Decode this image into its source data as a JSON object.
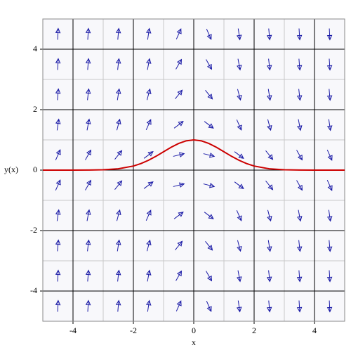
{
  "chart_data": {
    "type": "direction-field",
    "xlabel": "x",
    "ylabel": "y(x)",
    "xlim": [
      -5,
      5
    ],
    "ylim": [
      -5,
      5
    ],
    "xticks": [
      -4,
      -2,
      0,
      2,
      4
    ],
    "yticks": [
      -4,
      -2,
      0,
      2,
      4
    ],
    "minor_grid": [
      -3,
      -1,
      1,
      3
    ],
    "grid": true,
    "arrow_color": "#1a1aa6",
    "field": {
      "x": [
        -4.5,
        -3.5,
        -2.5,
        -1.5,
        -0.5,
        0.5,
        1.5,
        2.5,
        3.5,
        4.5
      ],
      "y": [
        4.5,
        3.5,
        2.5,
        1.5,
        0.5,
        -0.5,
        -1.5,
        -2.5,
        -3.5,
        -4.5
      ],
      "slopes": [
        [
          20.25,
          15.75,
          11.25,
          6.75,
          2.25,
          -2.25,
          -6.75,
          -11.25,
          -15.75,
          -20.25
        ],
        [
          15.75,
          12.25,
          8.75,
          5.25,
          1.75,
          -1.75,
          -5.25,
          -8.75,
          -12.25,
          -15.75
        ],
        [
          11.25,
          8.75,
          6.25,
          3.75,
          1.25,
          -1.25,
          -3.75,
          -6.25,
          -8.75,
          -11.25
        ],
        [
          6.75,
          5.25,
          3.75,
          2.25,
          0.75,
          -0.75,
          -2.25,
          -3.75,
          -5.25,
          -6.75
        ],
        [
          2.25,
          1.75,
          1.25,
          0.75,
          0.25,
          -0.25,
          -0.75,
          -1.25,
          -1.75,
          -2.25
        ],
        [
          2.25,
          1.75,
          1.25,
          0.75,
          0.25,
          -0.25,
          -0.75,
          -1.25,
          -1.75,
          -2.25
        ],
        [
          6.75,
          5.25,
          3.75,
          2.25,
          0.75,
          -0.75,
          -2.25,
          -3.75,
          -5.25,
          -6.75
        ],
        [
          11.25,
          8.75,
          6.25,
          3.75,
          1.25,
          -1.25,
          -3.75,
          -6.25,
          -8.75,
          -11.25
        ],
        [
          15.75,
          12.25,
          8.75,
          5.25,
          1.75,
          -1.75,
          -5.25,
          -8.75,
          -12.25,
          -15.75
        ],
        [
          20.25,
          15.75,
          11.25,
          6.75,
          2.25,
          -2.25,
          -6.75,
          -11.25,
          -15.75,
          -20.25
        ]
      ]
    },
    "curve": {
      "color": "#cc0000",
      "x": [
        -5,
        -4.5,
        -4,
        -3.5,
        -3,
        -2.5,
        -2,
        -1.75,
        -1.5,
        -1.25,
        -1,
        -0.75,
        -0.5,
        -0.25,
        0,
        0.25,
        0.5,
        0.75,
        1,
        1.25,
        1.5,
        1.75,
        2,
        2.5,
        3,
        3.5,
        4,
        4.5,
        5
      ],
      "y": [
        0,
        0,
        0.0003,
        0.0022,
        0.011,
        0.044,
        0.135,
        0.216,
        0.325,
        0.458,
        0.607,
        0.755,
        0.882,
        0.969,
        1,
        0.969,
        0.882,
        0.755,
        0.607,
        0.458,
        0.325,
        0.216,
        0.135,
        0.044,
        0.011,
        0.0022,
        0.0003,
        0,
        0
      ]
    }
  }
}
